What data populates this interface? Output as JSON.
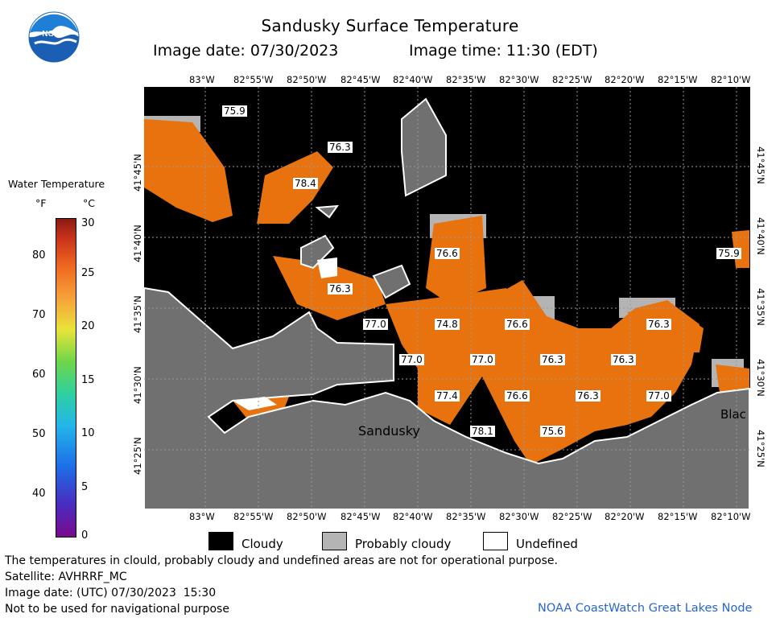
{
  "header": {
    "title": "Sandusky Surface Temperature",
    "image_date": "Image date: 07/30/2023",
    "image_time": "Image time: 11:30 (EDT)"
  },
  "logo": {
    "text": "NOAA",
    "icon": "noaa-logo-icon"
  },
  "legend": {
    "title": "Water Temperature",
    "unit_f": "°F",
    "unit_c": "°C",
    "f_ticks": [
      "80",
      "70",
      "60",
      "50",
      "40"
    ],
    "c_ticks": [
      "30",
      "25",
      "20",
      "15",
      "10",
      "5",
      "0"
    ]
  },
  "axes": {
    "lon_ticks": [
      "83°W",
      "82°55'W",
      "82°50'W",
      "82°45'W",
      "82°40'W",
      "82°35'W",
      "82°30'W",
      "82°25'W",
      "82°20'W",
      "82°15'W",
      "82°10'W"
    ],
    "lat_ticks": [
      "41°45'N",
      "41°40'N",
      "41°35'N",
      "41°30'N",
      "41°25'N"
    ]
  },
  "map": {
    "place_labels": [
      "Sandusky",
      "Blac"
    ],
    "temperature_labels": [
      "75.9",
      "76.3",
      "78.4",
      "76.6",
      "75.9",
      "76.3",
      "77.0",
      "74.8",
      "76.6",
      "76.3",
      "77.0",
      "77.0",
      "76.3",
      "76.3",
      "77.4",
      "76.6",
      "76.3",
      "77.0",
      "78.1",
      "75.6"
    ]
  },
  "key": {
    "cloudy": "Cloudy",
    "probably_cloudy": "Probably cloudy",
    "undefined": "Undefined"
  },
  "footer": {
    "note": "The temperatures in clould, probably cloudy and undefined areas are not for operational purpose.",
    "satellite": "Satellite: AVHRRF_MC",
    "utc_date": "Image date: (UTC) 07/30/2023  15:30",
    "nav_warning": "Not to be used for navigational purpose",
    "node": "NOAA CoastWatch Great Lakes Node"
  },
  "colors": {
    "water_warm": "#e8730e",
    "cloudy": "#000000",
    "probably_cloudy": "#b4b4b4",
    "land": "#707070",
    "undefined": "#ffffff",
    "node_text": "#2a66c9"
  }
}
